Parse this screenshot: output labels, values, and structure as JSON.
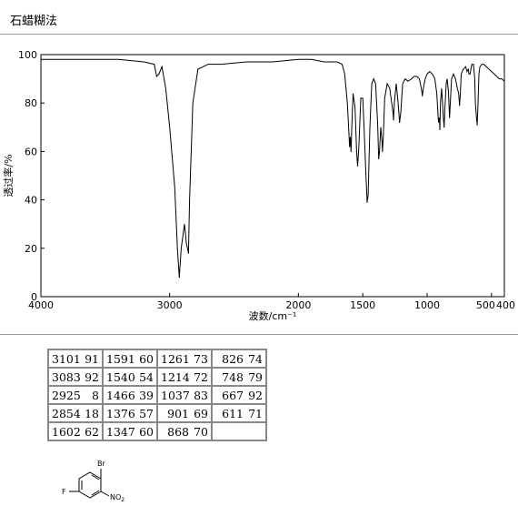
{
  "header": {
    "title": "石蜡糊法"
  },
  "chart_data": {
    "type": "line",
    "xlabel": "波数/cm⁻¹",
    "ylabel": "透过率/%",
    "xlim": [
      4000,
      400
    ],
    "ylim": [
      0,
      100
    ],
    "x_reversed": true,
    "grid": false,
    "xticks": [
      4000,
      3000,
      2000,
      1500,
      1000,
      500,
      400
    ],
    "xtick_labels": [
      "4000",
      "3000",
      "2000",
      "1500",
      "1000",
      "500",
      "400"
    ],
    "yticks": [
      0,
      20,
      40,
      60,
      80,
      100
    ],
    "ytick_labels": [
      "0",
      "20",
      "40",
      "60",
      "80",
      "100"
    ],
    "series": [
      {
        "x": [
          4000,
          3800,
          3600,
          3400,
          3200,
          3120,
          3101,
          3083,
          3060,
          3030,
          3000,
          2960,
          2940,
          2925,
          2910,
          2885,
          2870,
          2854,
          2845,
          2820,
          2780,
          2700,
          2600,
          2400,
          2200,
          2000,
          1900,
          1800,
          1700,
          1660,
          1640,
          1620,
          1610,
          1602,
          1597,
          1591,
          1585,
          1575,
          1560,
          1548,
          1540,
          1530,
          1515,
          1500,
          1490,
          1475,
          1466,
          1458,
          1445,
          1430,
          1415,
          1400,
          1385,
          1376,
          1370,
          1360,
          1350,
          1347,
          1340,
          1330,
          1310,
          1290,
          1275,
          1265,
          1261,
          1255,
          1240,
          1225,
          1214,
          1205,
          1190,
          1170,
          1150,
          1120,
          1100,
          1080,
          1060,
          1045,
          1037,
          1030,
          1015,
          1000,
          980,
          960,
          940,
          925,
          912,
          905,
          901,
          896,
          888,
          880,
          875,
          868,
          862,
          852,
          845,
          835,
          826,
          818,
          810,
          795,
          780,
          765,
          755,
          748,
          742,
          735,
          720,
          700,
          690,
          680,
          675,
          667,
          660,
          652,
          640,
          630,
          625,
          617,
          611,
          605,
          598,
          590,
          575,
          560,
          540,
          520,
          500,
          480,
          460,
          440,
          420,
          400
        ],
        "y": [
          98,
          98,
          98,
          98,
          97,
          96,
          91,
          92,
          95,
          86,
          70,
          45,
          20,
          8,
          20,
          30,
          22,
          18,
          40,
          80,
          94,
          96,
          96,
          97,
          97,
          98,
          98,
          97,
          97,
          96,
          92,
          80,
          70,
          62,
          66,
          60,
          70,
          84,
          78,
          60,
          54,
          62,
          82,
          82,
          70,
          50,
          39,
          42,
          70,
          88,
          90,
          88,
          72,
          57,
          60,
          70,
          64,
          60,
          66,
          82,
          88,
          86,
          80,
          76,
          73,
          80,
          88,
          80,
          72,
          76,
          88,
          90,
          89,
          90,
          91,
          91,
          90,
          86,
          83,
          86,
          90,
          92,
          93,
          92,
          90,
          84,
          72,
          74,
          69,
          80,
          86,
          80,
          75,
          70,
          78,
          88,
          90,
          85,
          74,
          82,
          90,
          92,
          90,
          86,
          84,
          79,
          84,
          92,
          94,
          95,
          93,
          94,
          92,
          92,
          94,
          96,
          96,
          90,
          80,
          74,
          71,
          80,
          92,
          95,
          96,
          96,
          95,
          94,
          93,
          92,
          91,
          90,
          90,
          89
        ]
      }
    ],
    "peaks": [
      {
        "wn": 3101,
        "t": 91
      },
      {
        "wn": 3083,
        "t": 92
      },
      {
        "wn": 2925,
        "t": 8
      },
      {
        "wn": 2854,
        "t": 18
      },
      {
        "wn": 1602,
        "t": 62
      },
      {
        "wn": 1591,
        "t": 60
      },
      {
        "wn": 1540,
        "t": 54
      },
      {
        "wn": 1466,
        "t": 39
      },
      {
        "wn": 1376,
        "t": 57
      },
      {
        "wn": 1347,
        "t": 60
      },
      {
        "wn": 1261,
        "t": 73
      },
      {
        "wn": 1214,
        "t": 72
      },
      {
        "wn": 1037,
        "t": 83
      },
      {
        "wn": 901,
        "t": 69
      },
      {
        "wn": 868,
        "t": 70
      },
      {
        "wn": 826,
        "t": 74
      },
      {
        "wn": 748,
        "t": 79
      },
      {
        "wn": 667,
        "t": 92
      },
      {
        "wn": 611,
        "t": 71
      }
    ]
  },
  "peak_table": {
    "columns": [
      [
        [
          "3101",
          "91"
        ],
        [
          "3083",
          "92"
        ],
        [
          "2925",
          "8"
        ],
        [
          "2854",
          "18"
        ],
        [
          "1602",
          "62"
        ]
      ],
      [
        [
          "1591",
          "60"
        ],
        [
          "1540",
          "54"
        ],
        [
          "1466",
          "39"
        ],
        [
          "1376",
          "57"
        ],
        [
          "1347",
          "60"
        ]
      ],
      [
        [
          "1261",
          "73"
        ],
        [
          "1214",
          "72"
        ],
        [
          "1037",
          "83"
        ],
        [
          "901",
          "69"
        ],
        [
          "868",
          "70"
        ]
      ],
      [
        [
          "826",
          "74"
        ],
        [
          "748",
          "79"
        ],
        [
          "667",
          "92"
        ],
        [
          "611",
          "71"
        ],
        [
          "",
          ""
        ]
      ]
    ]
  },
  "structure": {
    "substituents": {
      "bromo": "Br",
      "fluoro": "F",
      "nitro": "NO",
      "nitro_subscript": "2"
    }
  }
}
